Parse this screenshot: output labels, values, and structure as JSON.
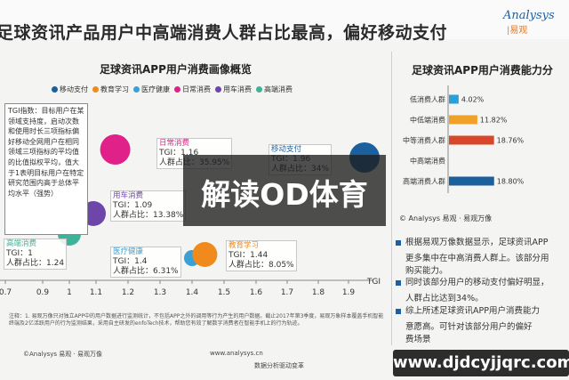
{
  "header": {
    "title": "足球资讯产品用户中高端消费人群占比最高，偏好移动支付",
    "logo_line1": "Analysys",
    "logo_line2": "|易观"
  },
  "overlay": {
    "text": "解读OD体育"
  },
  "watermark_url": "www.djdcyjjqrc.com",
  "left_panel": {
    "title": "足球资讯APP用户消费画像概览",
    "tgi_note": "TGI指数：目标用户在某领域支持度，启动次数和使用时长三项指标偏好移动全网用户在相同领域三项指标的平均值的比值拟权平均，值大于1表明目标用户在特定研究范围内高于总体平均水平（强势）",
    "footnote": "注释：1. 易观万像只对独立APP中的用户数据进行监测统计，不包括APP之外的调用等行为产生的用户数据。截止2017年第3季度，易观万象样本覆盖手机智能终端及2亿活跃用户的行为监测结果，采用自主研发的enfoTech技术，帮助您有效了解数字消费者在智能手机上的行为轨迹。",
    "footer_left": "©Analysys 易观 · 易观万像",
    "footer_mid": "www.analysys.cn",
    "footer_mid2": "数据分析驱动变革"
  },
  "chart_data": [
    {
      "type": "scatter",
      "title": "足球资讯APP用户消费画像概览",
      "xlabel": "TGI",
      "xlim": [
        0.7,
        2.0
      ],
      "x_ticks": [
        "0.7",
        "0.9",
        "1",
        "1.1",
        "1.2",
        "1.3",
        "1.4",
        "1.5",
        "1.6",
        "1.7",
        "1.8",
        "1.9"
      ],
      "legend": [
        "移动支付",
        "教育学习",
        "医疗健康",
        "日常消费",
        "用车消费",
        "高端消费"
      ],
      "legend_placement": "top",
      "series": [
        {
          "name": "日常消费",
          "tgi": 1.16,
          "share": "35.95%",
          "color": "#e0218a",
          "label_name": "日常消费",
          "label_tgi": "TGI：1.16",
          "label_share": "人群占比：35.95%"
        },
        {
          "name": "移动支付",
          "tgi": 1.96,
          "share": "34%",
          "color": "#1a5f9e",
          "label_name": "移动支付",
          "label_tgi": "TGI：1.96",
          "label_share": "人群占比：34%"
        },
        {
          "name": "用车消费",
          "tgi": 1.09,
          "share": "13.38%",
          "color": "#6e45a8",
          "label_name": "用车消费",
          "label_tgi": "TGI：1.09",
          "label_share": "人群占比：13.38%"
        },
        {
          "name": "高端消费",
          "tgi": 1,
          "share": "1.24",
          "color": "#3fb39a",
          "label_name": "高端消费",
          "label_tgi": "TGI：1",
          "label_share": "人群占比：1.24"
        },
        {
          "name": "医疗健康",
          "tgi": 1.4,
          "share": "6.31%",
          "color": "#3aa0d8",
          "label_name": "医疗健康",
          "label_tgi": "TGI：1.4",
          "label_share": "人群占比：6.31%"
        },
        {
          "name": "教育学习",
          "tgi": 1.44,
          "share": "8.05%",
          "color": "#f08a1c",
          "label_name": "教育学习",
          "label_tgi": "TGI：1.44",
          "label_share": "人群占比：8.05%"
        }
      ]
    },
    {
      "type": "bar",
      "orientation": "horizontal",
      "title": "足球资讯APP用户消费能力分",
      "categories": [
        "低消费人群",
        "中低端消费",
        "中等消费人群",
        "中高端消费",
        "高端消费人群"
      ],
      "values": [
        4.02,
        11.82,
        18.76,
        null,
        18.8
      ],
      "value_labels": [
        "4.02%",
        "11.82%",
        "18.76%",
        "",
        "18.80%"
      ],
      "colors": [
        "#2a9fd8",
        "#f0a127",
        "#d9472b",
        "#bfbfbf",
        "#1a5f9e"
      ],
      "xlim": [
        0,
        50
      ]
    }
  ],
  "right_panel": {
    "title": "足球资讯APP用户消费能力分",
    "source": "© Analysys 易观 · 易观万像",
    "bullets": [
      "根据易观万像数据显示，足球资讯APP",
      "更多集中在中高消费人群上。该部分用",
      "购买能力。",
      "同时该部分用户的移动支付偏好明显，",
      "人群占比达到34%。",
      "综上所述足球资讯APP用户消费能力",
      "意愿高。可针对该部分用户的偏好",
      "费场景"
    ]
  }
}
